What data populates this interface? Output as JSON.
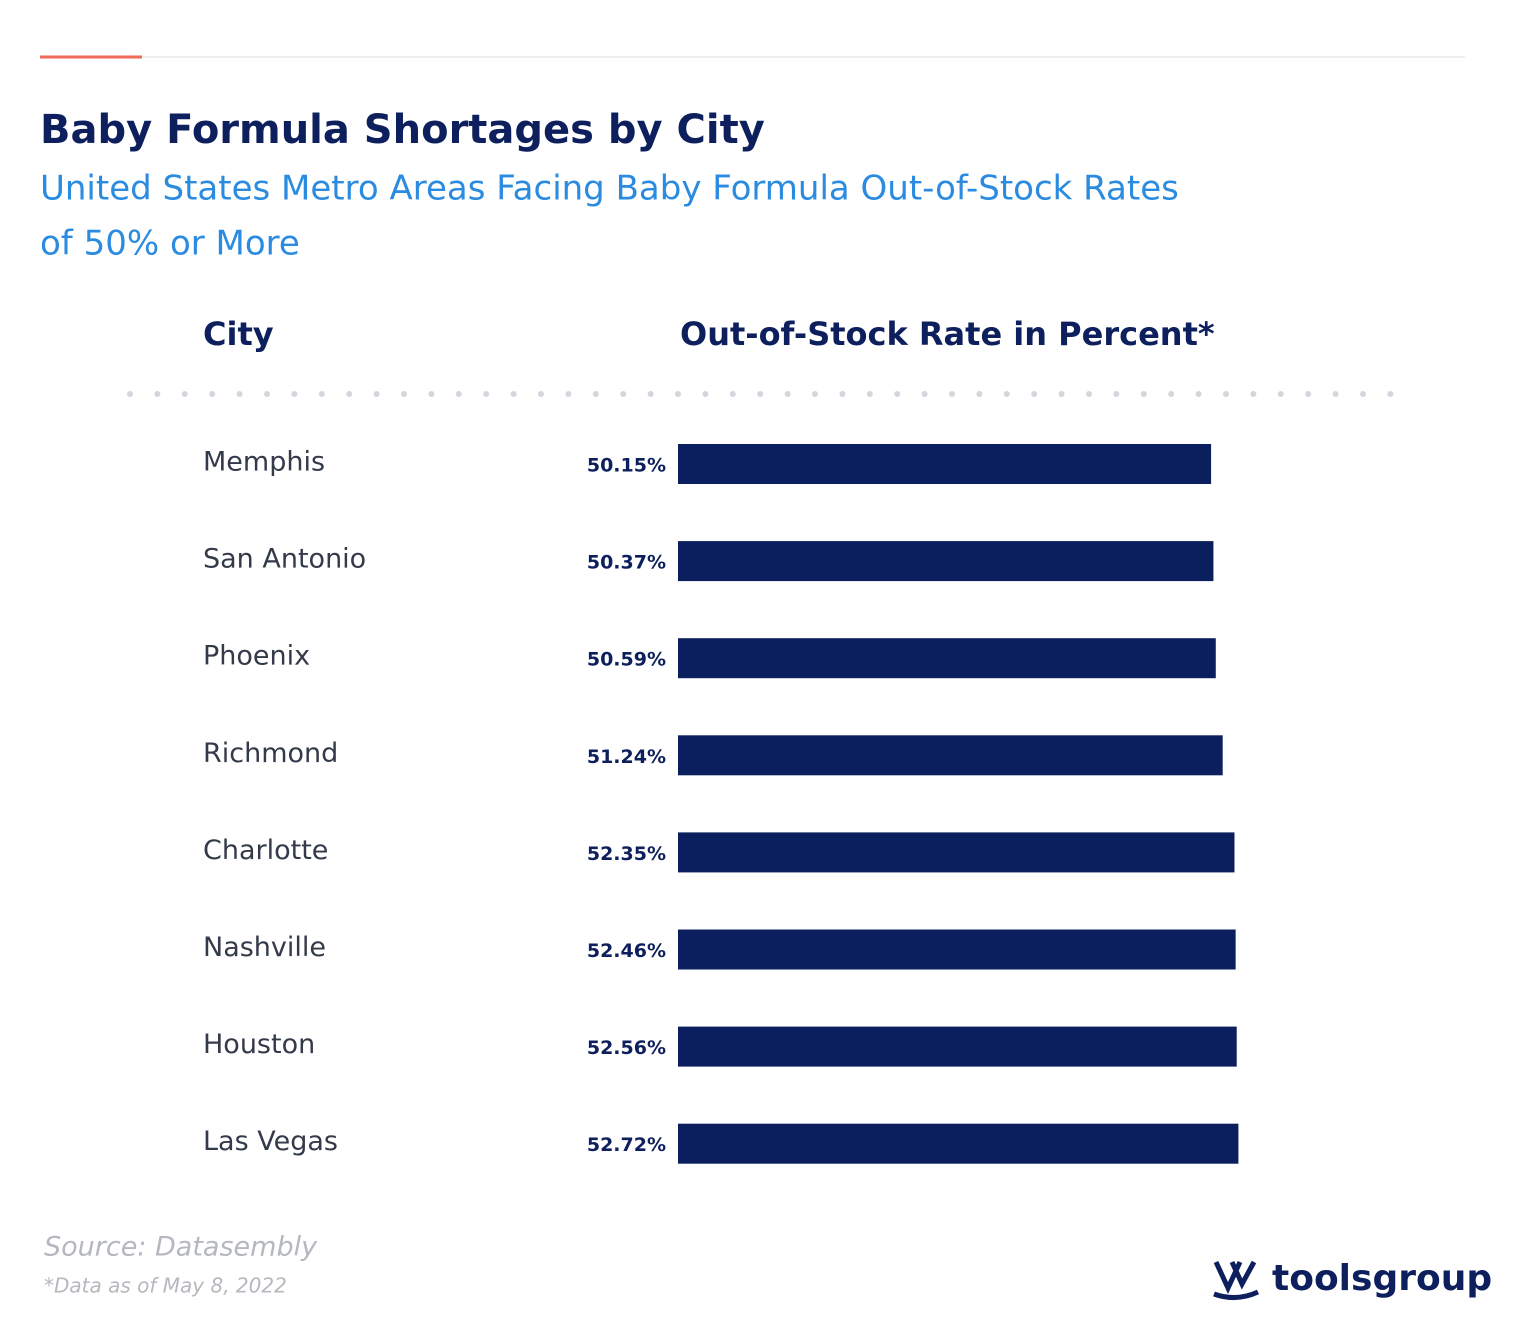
{
  "chart_data": {
    "type": "bar",
    "orientation": "horizontal",
    "title": "Baby Formula Shortages by City",
    "subtitle": [
      "United States Metro Areas Facing Baby Formula Out-of-Stock Rates",
      "of 50% or More"
    ],
    "category_header": "City",
    "value_header": "Out-of-Stock Rate in Percent*",
    "categories": [
      "Memphis",
      "San Antonio",
      "Phoenix",
      "Richmond",
      "Charlotte",
      "Nashville",
      "Houston",
      "Las Vegas"
    ],
    "values": [
      50.15,
      50.37,
      50.59,
      51.24,
      52.35,
      52.46,
      52.56,
      52.72
    ],
    "value_labels": [
      "50.15%",
      "50.37%",
      "50.59%",
      "51.24%",
      "52.35%",
      "52.46%",
      "52.56%",
      "52.72%"
    ],
    "color": "#0b1f5e",
    "source": "Source: Datasembly",
    "note": "*Data as of May 8, 2022",
    "logo": "toolsgroup"
  }
}
